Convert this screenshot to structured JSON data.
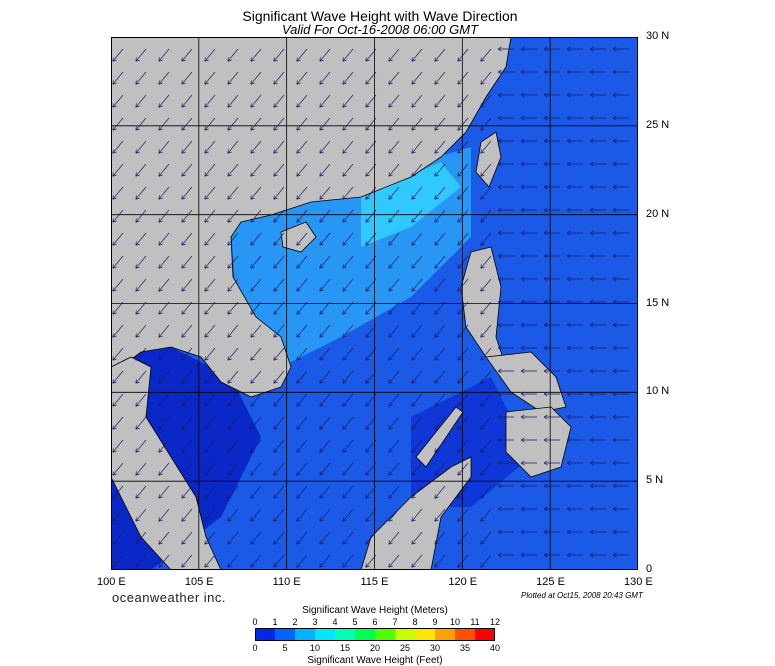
{
  "title": "Significant Wave Height with Wave Direction",
  "subtitle": "Valid For Oct-16-2008 06:00 GMT",
  "x_ticks": [
    "100 E",
    "105 E",
    "110 E",
    "115 E",
    "120 E",
    "125 E",
    "130 E"
  ],
  "y_ticks": [
    "30 N",
    "25 N",
    "20 N",
    "15 N",
    "10 N",
    "5 N",
    "0"
  ],
  "brand": "oceanweather inc.",
  "plotted": "Plotted at Oct15, 2008 20:43 GMT",
  "legend": {
    "title_top": "Significant Wave Height (Meters)",
    "title_bottom": "Significant Wave Height (Feet)",
    "meters": [
      "0",
      "1",
      "2",
      "3",
      "4",
      "5",
      "6",
      "7",
      "8",
      "9",
      "10",
      "11",
      "12"
    ],
    "feet": [
      "0",
      "5",
      "10",
      "15",
      "20",
      "25",
      "30",
      "35",
      "40"
    ],
    "colors": [
      "#0000a0",
      "#0028e6",
      "#0064ff",
      "#00b4ff",
      "#00e6ff",
      "#00ffb4",
      "#00ff50",
      "#50ff00",
      "#c8ff00",
      "#ffe600",
      "#ffa000",
      "#ff5000",
      "#ff0000"
    ]
  },
  "colors": {
    "land": "#c0c0c0",
    "deep_sea": "#0019c8",
    "mid_sea": "#1e6ef0",
    "shallow": "#28b4ff",
    "grid": "#000000"
  }
}
